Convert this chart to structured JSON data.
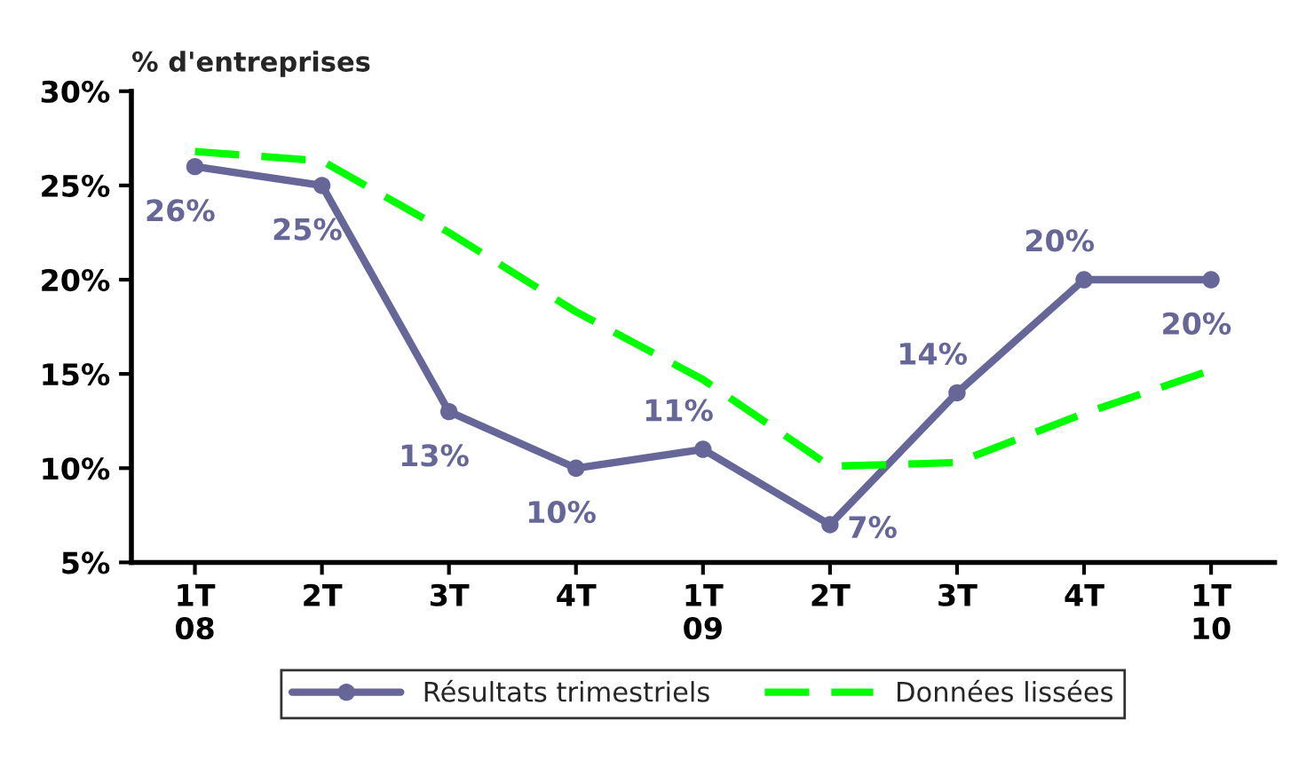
{
  "chart_data": {
    "type": "line",
    "ylabel": "% d'entreprises",
    "categories": [
      "1T\n08",
      "2T",
      "3T",
      "4T",
      "1T\n09",
      "2T",
      "3T",
      "4T",
      "1T\n10"
    ],
    "series": [
      {
        "name": "Résultats trimestriels",
        "color": "#666699",
        "marker": "circle",
        "line_style": "solid",
        "values": [
          26,
          25,
          13,
          10,
          11,
          7,
          14,
          20,
          20
        ],
        "value_labels": [
          "26%",
          "25%",
          "13%",
          "10%",
          "11%",
          "7%",
          "14%",
          "20%",
          "20%"
        ]
      },
      {
        "name": "Données lissées",
        "color": "#00ff00",
        "marker": "none",
        "line_style": "dashed",
        "values": [
          26.8,
          26.3,
          22.5,
          18.3,
          14.7,
          10.1,
          10.3,
          12.9,
          15.2
        ]
      }
    ],
    "ylim": [
      5,
      30
    ],
    "yticks": [
      {
        "value": 5,
        "label": "5%"
      },
      {
        "value": 10,
        "label": "10%"
      },
      {
        "value": 15,
        "label": "15%"
      },
      {
        "value": 20,
        "label": "20%"
      },
      {
        "value": 25,
        "label": "25%"
      },
      {
        "value": 30,
        "label": "30%"
      }
    ],
    "grid": false,
    "legend": "bottom"
  }
}
